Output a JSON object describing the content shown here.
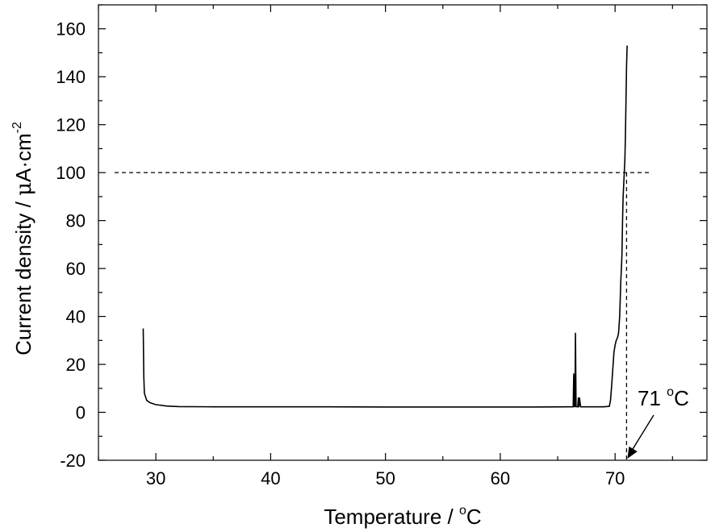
{
  "chart_data": {
    "type": "line",
    "xlabel": "Temperature / ",
    "xlabel_unit": "C",
    "ylabel_prefix": "Current density / ",
    "ylabel_mu": "μ",
    "ylabel_unit": "A·cm",
    "ylabel_exp": "-2",
    "degree_sign": "o",
    "xlim": [
      25,
      78
    ],
    "ylim": [
      -20,
      170
    ],
    "x_ticks": [
      30,
      40,
      50,
      60,
      70
    ],
    "y_ticks": [
      -20,
      0,
      20,
      40,
      60,
      80,
      100,
      120,
      140,
      160
    ],
    "grid": false,
    "series": [
      {
        "x": [
          28.9,
          28.95,
          29.0,
          29.2,
          29.5,
          30.0,
          31.0,
          32.0,
          35.0,
          40.0,
          45.0,
          50.0,
          55.0,
          60.0,
          63.0,
          66.0,
          66.35,
          66.4,
          66.45,
          66.5,
          66.55,
          66.6,
          66.65,
          66.7,
          66.75,
          66.8,
          66.85,
          66.9,
          67.0,
          68.0,
          69.0,
          69.5,
          69.6,
          69.7,
          69.8,
          69.9,
          70.0,
          70.1,
          70.2,
          70.3,
          70.4,
          70.5,
          70.55,
          70.6,
          70.65,
          70.7,
          70.75,
          70.8,
          70.85,
          70.9,
          70.95,
          71.0,
          71.05
        ],
        "y": [
          35.0,
          15.0,
          8.0,
          5.0,
          4.0,
          3.2,
          2.6,
          2.4,
          2.3,
          2.3,
          2.3,
          2.2,
          2.2,
          2.2,
          2.2,
          2.3,
          2.3,
          16.0,
          2.5,
          2.3,
          33.0,
          2.5,
          2.3,
          2.3,
          2.3,
          6.0,
          2.3,
          6.0,
          2.3,
          2.3,
          2.3,
          2.5,
          5.0,
          11.0,
          18.0,
          25.0,
          28.0,
          30.0,
          31.0,
          33.0,
          40.0,
          55.0,
          60.0,
          66.0,
          80.0,
          90.0,
          95.0,
          100.0,
          105.0,
          115.0,
          130.0,
          145.0,
          153.0
        ]
      }
    ],
    "reference_lines": {
      "horizontal_y": 100,
      "horizontal_x_end": 73,
      "vertical_x": 71
    },
    "annotations": [
      {
        "value": "71 ",
        "unit": "C",
        "point_x": 71.0,
        "point_y": -20
      }
    ]
  }
}
